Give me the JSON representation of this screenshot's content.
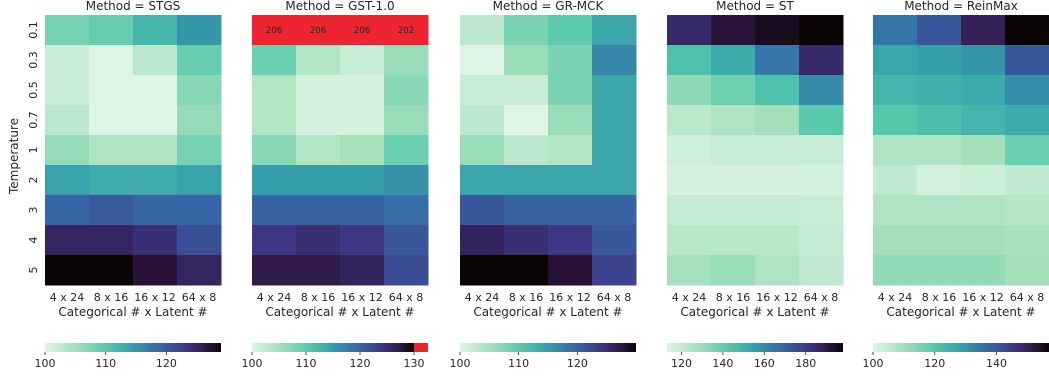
{
  "figure": {
    "ylabel": "Temperature",
    "xlabel": "Categorical # x Latent #"
  },
  "chart_data": [
    {
      "type": "heatmap",
      "title": "Method = STGS",
      "x_categories": [
        "4 x 24",
        "8 x 16",
        "16 x 12",
        "64 x 8"
      ],
      "y_categories": [
        "0.1",
        "0.3",
        "0.5",
        "0.7",
        "1",
        "2",
        "3",
        "4",
        "5"
      ],
      "values": [
        [
          108,
          109,
          112,
          115
        ],
        [
          102,
          100,
          103,
          109
        ],
        [
          102,
          99,
          100,
          107
        ],
        [
          103,
          100,
          100,
          106
        ],
        [
          106,
          104,
          104,
          108
        ],
        [
          114,
          113,
          113,
          114
        ],
        [
          119,
          120,
          119,
          119
        ],
        [
          125,
          125,
          124,
          121
        ],
        [
          130,
          129,
          127,
          125
        ]
      ],
      "colorbar": {
        "min": 100,
        "max": 129,
        "ticks": [
          100,
          110,
          120
        ]
      }
    },
    {
      "type": "heatmap",
      "title": "Method = GST-1.0",
      "x_categories": [
        "4 x 24",
        "8 x 16",
        "16 x 12",
        "64 x 8"
      ],
      "y_categories": [
        "0.1",
        "0.3",
        "0.5",
        "0.7",
        "1",
        "2",
        "3",
        "4",
        "5"
      ],
      "values": [
        [
          206,
          206,
          206,
          202
        ],
        [
          109,
          104,
          102,
          106
        ],
        [
          104,
          101,
          101,
          107
        ],
        [
          104,
          101,
          101,
          106
        ],
        [
          107,
          104,
          105,
          109
        ],
        [
          115,
          115,
          115,
          116
        ],
        [
          120,
          120,
          120,
          119
        ],
        [
          124,
          125,
          124,
          121
        ],
        [
          127,
          127,
          126,
          122
        ]
      ],
      "annotations": [
        {
          "row": 0,
          "col": 0,
          "text": "206"
        },
        {
          "row": 0,
          "col": 1,
          "text": "206"
        },
        {
          "row": 0,
          "col": 2,
          "text": "206"
        },
        {
          "row": 0,
          "col": 3,
          "text": "202"
        }
      ],
      "out_of_range_color": "#ee2530",
      "colorbar": {
        "min": 100,
        "max": 130,
        "ticks": [
          100,
          110,
          120,
          130
        ],
        "overflow": true
      }
    },
    {
      "type": "heatmap",
      "title": "Method = GR-MCK",
      "x_categories": [
        "4 x 24",
        "8 x 16",
        "16 x 12",
        "64 x 8"
      ],
      "y_categories": [
        "0.1",
        "0.3",
        "0.5",
        "0.7",
        "1",
        "2",
        "3",
        "4",
        "5"
      ],
      "values": [
        [
          103,
          108,
          110,
          114
        ],
        [
          100,
          106,
          108,
          117
        ],
        [
          102,
          102,
          108,
          114
        ],
        [
          103,
          99,
          106,
          114
        ],
        [
          106,
          103,
          104,
          114
        ],
        [
          114,
          114,
          114,
          114
        ],
        [
          121,
          120,
          120,
          120
        ],
        [
          126,
          125,
          124,
          121
        ],
        [
          130,
          130,
          128,
          123
        ]
      ],
      "colorbar": {
        "min": 100,
        "max": 130,
        "ticks": [
          100,
          110,
          120
        ]
      }
    },
    {
      "type": "heatmap",
      "title": "Method = ST",
      "x_categories": [
        "4 x 24",
        "8 x 16",
        "16 x 12",
        "64 x 8"
      ],
      "y_categories": [
        "0.1",
        "0.3",
        "0.5",
        "0.7",
        "1",
        "2",
        "3",
        "4",
        "5"
      ],
      "values": [
        [
          185,
          192,
          195,
          198
        ],
        [
          145,
          152,
          165,
          185
        ],
        [
          132,
          138,
          145,
          160
        ],
        [
          122,
          125,
          128,
          142
        ],
        [
          117,
          119,
          119,
          119
        ],
        [
          115,
          115,
          115,
          116
        ],
        [
          120,
          120,
          120,
          119
        ],
        [
          123,
          123,
          123,
          120
        ],
        [
          127,
          130,
          125,
          121
        ]
      ],
      "colorbar": {
        "min": 113,
        "max": 198,
        "ticks": [
          120,
          140,
          160,
          180
        ]
      }
    },
    {
      "type": "heatmap",
      "title": "Method = ReinMax",
      "x_categories": [
        "4 x 24",
        "8 x 16",
        "16 x 12",
        "64 x 8"
      ],
      "y_categories": [
        "0.1",
        "0.3",
        "0.5",
        "0.7",
        "1",
        "2",
        "3",
        "4",
        "5"
      ],
      "values": [
        [
          135,
          140,
          150,
          157
        ],
        [
          127,
          128,
          130,
          140
        ],
        [
          124,
          125,
          126,
          131
        ],
        [
          120,
          122,
          124,
          126
        ],
        [
          108,
          108,
          110,
          117
        ],
        [
          105,
          102,
          103,
          105
        ],
        [
          108,
          108,
          108,
          107
        ],
        [
          110,
          110,
          110,
          109
        ],
        [
          112,
          112,
          112,
          110
        ]
      ],
      "colorbar": {
        "min": 100,
        "max": 157,
        "ticks": [
          100,
          120,
          140
        ]
      }
    }
  ]
}
